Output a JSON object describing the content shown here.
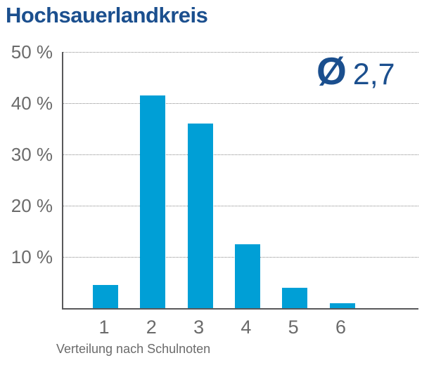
{
  "title": "Hochsauerlandkreis",
  "average": {
    "symbol": "Ø",
    "value": "2,7"
  },
  "chart_data": {
    "type": "bar",
    "categories": [
      "1",
      "2",
      "3",
      "4",
      "5",
      "6"
    ],
    "values": [
      4.5,
      41.5,
      36,
      12.5,
      4,
      1
    ],
    "title": "Hochsauerlandkreis",
    "xlabel": "Verteilung nach Schulnoten",
    "ylabel": "",
    "ylim": [
      0,
      50
    ],
    "yticks": [
      10,
      20,
      30,
      40,
      50
    ],
    "ytick_suffix": " %",
    "grid": "horizontal-dotted",
    "legend": "none",
    "annotation_average": "2,7",
    "bar_color": "#009fd6"
  },
  "colors": {
    "bar": "#009fd6",
    "navy_text": "#1b4f8e",
    "axis": "#58585a",
    "grid": "#8a8a8a",
    "tick_text": "#6b6b6b"
  }
}
